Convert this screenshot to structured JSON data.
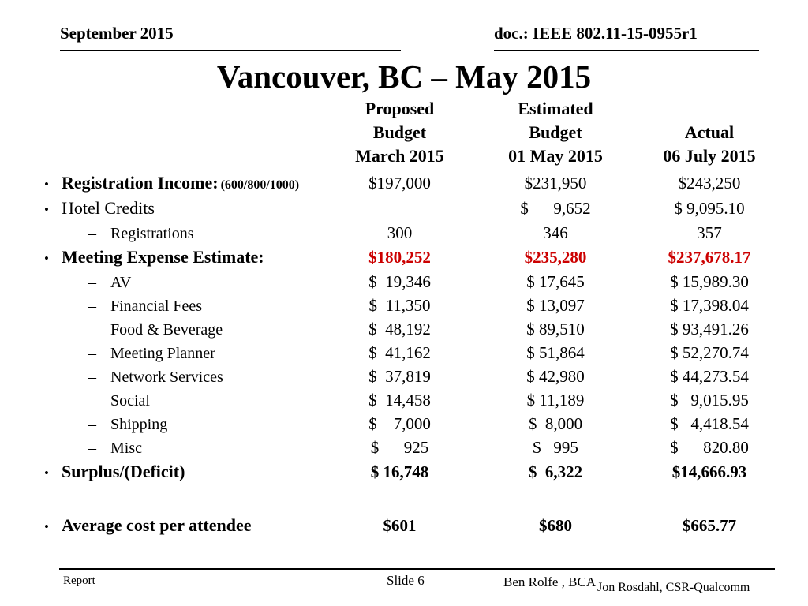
{
  "colors": {
    "red": "#cc0000"
  },
  "header": {
    "date": "September 2015",
    "doc": "doc.: IEEE 802.11-15-0955r1"
  },
  "title": "Vancouver, BC – May 2015",
  "table": {
    "col_headers": [
      "Proposed\nBudget\nMarch 2015",
      "Estimated\nBudget\n01 May 2015",
      "Actual\n06 July 2015"
    ],
    "rows": [
      {
        "bullet": "•",
        "label": "Registration Income:",
        "suffix": "(600/800/1000)",
        "v1": "$197,000",
        "v2": "$231,950",
        "v3": "$243,250"
      },
      {
        "bullet": "•",
        "label": "Hotel Credits",
        "v1": "",
        "v2": "$      9,652",
        "v3": "$ 9,095.10"
      },
      {
        "bullet": "–",
        "label": "Registrations",
        "v1": "300",
        "v2": "346",
        "v3": "357"
      },
      {
        "bullet": "•",
        "label": "Meeting Expense Estimate:",
        "v1": "$180,252",
        "v2": "$235,280",
        "v3": "$237,678.17"
      },
      {
        "bullet": "–",
        "label": "AV",
        "v1": "$  19,346",
        "v2": "$ 17,645",
        "v3": "$ 15,989.30"
      },
      {
        "bullet": "–",
        "label": "Financial Fees",
        "v1": "$  11,350",
        "v2": "$ 13,097",
        "v3": "$ 17,398.04"
      },
      {
        "bullet": "–",
        "label": "Food & Beverage",
        "v1": "$  48,192",
        "v2": "$ 89,510",
        "v3": "$ 93,491.26"
      },
      {
        "bullet": "–",
        "label": "Meeting Planner",
        "v1": "$  41,162",
        "v2": "$ 51,864",
        "v3": "$ 52,270.74"
      },
      {
        "bullet": "–",
        "label": "Network Services",
        "v1": "$  37,819",
        "v2": "$ 42,980",
        "v3": "$ 44,273.54"
      },
      {
        "bullet": "–",
        "label": "Social",
        "v1": "$  14,458",
        "v2": "$ 11,189",
        "v3": "$   9,015.95"
      },
      {
        "bullet": "–",
        "label": "Shipping",
        "v1": "$    7,000",
        "v2": "$  8,000",
        "v3": "$   4,418.54"
      },
      {
        "bullet": "–",
        "label": "Misc",
        "v1": "$      925",
        "v2": "$   995",
        "v3": "$      820.80"
      },
      {
        "bullet": "•",
        "label": "Surplus/(Deficit)",
        "v1": "$ 16,748",
        "v2": "$  6,322",
        "v3": "$14,666.93"
      },
      {
        "bullet": "•",
        "label": "Average cost per attendee",
        "v1": "$601",
        "v2": "$680",
        "v3": "$665.77"
      }
    ]
  },
  "footer": {
    "left": "Report",
    "slide": "Slide 6",
    "author": "Ben Rolfe , BCA",
    "author2": "Jon Rosdahl, CSR-Qualcomm"
  }
}
